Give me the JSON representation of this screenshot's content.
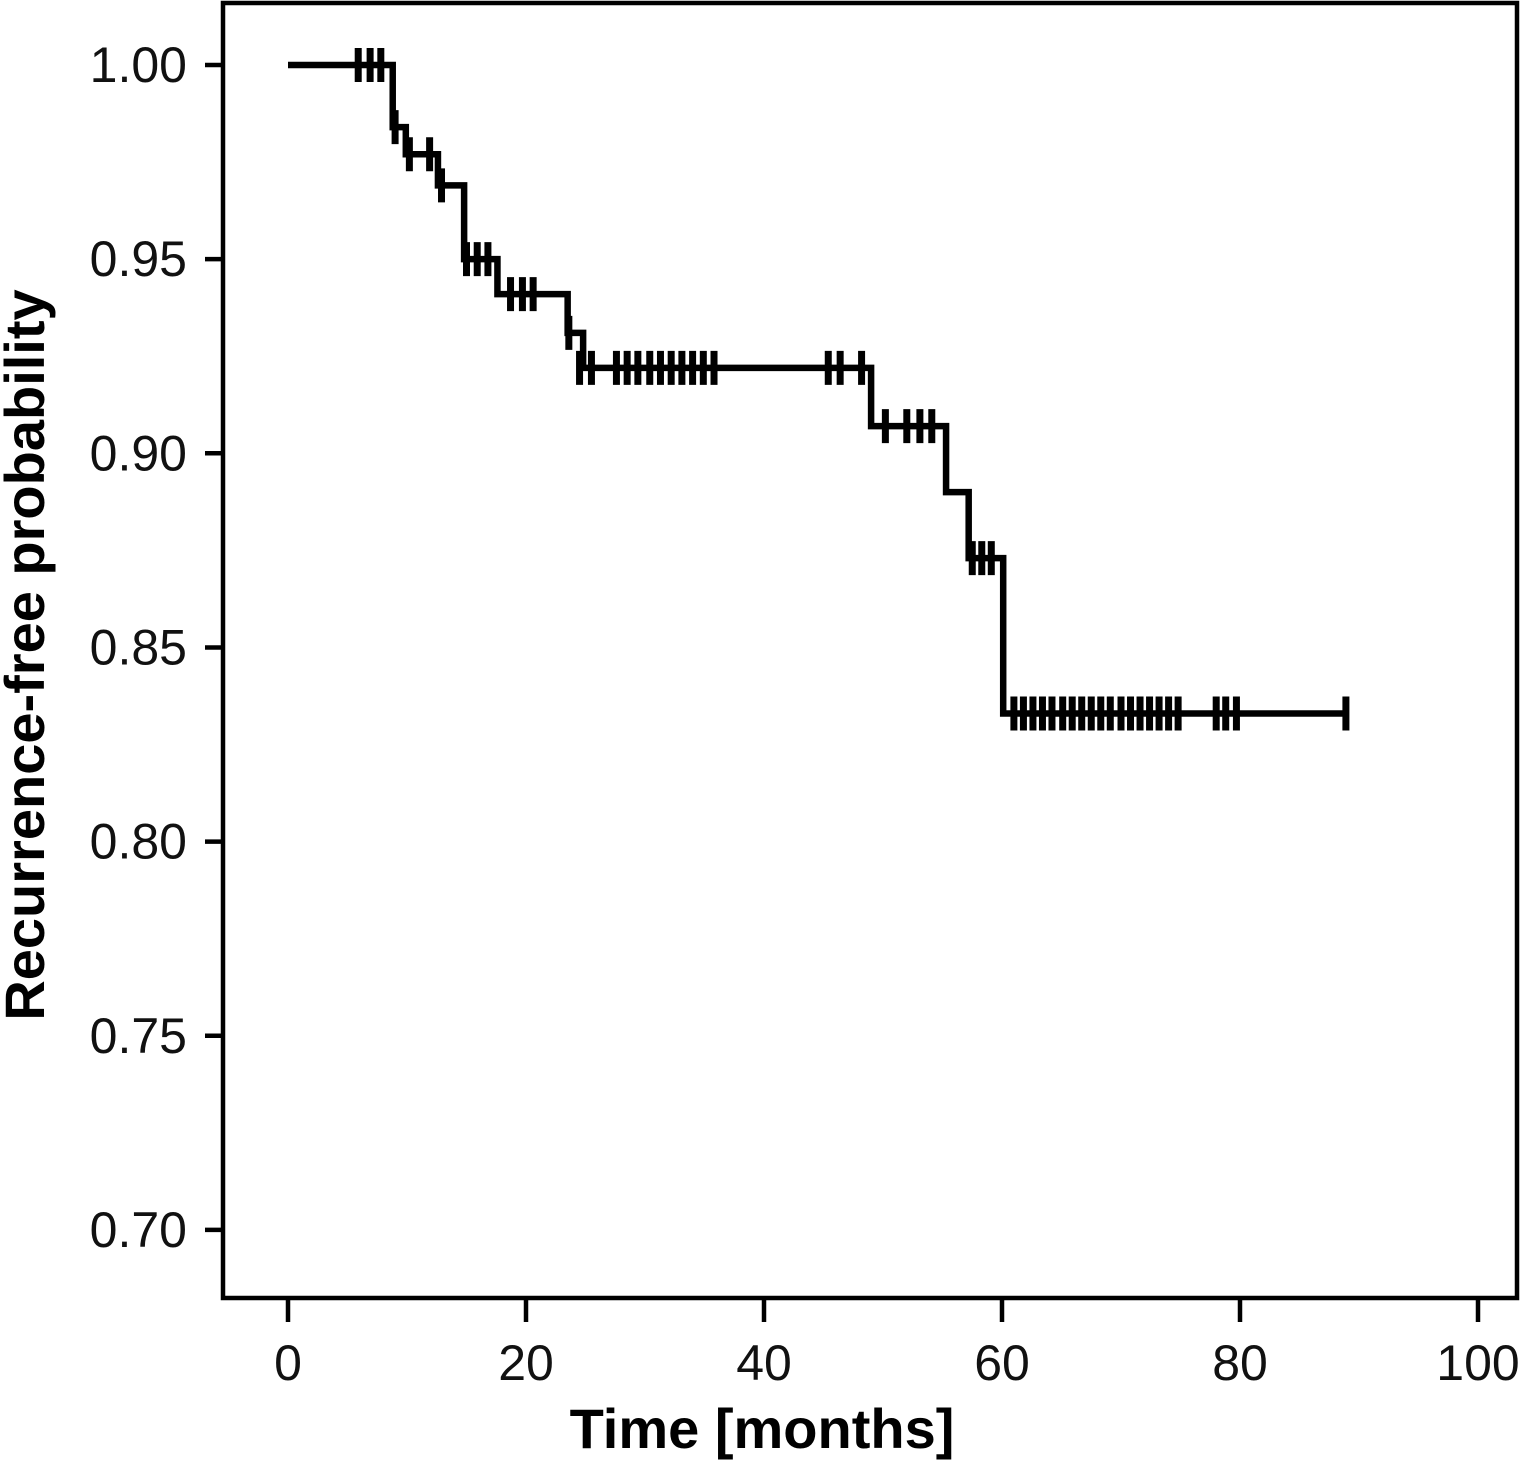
{
  "figure": {
    "background_color": "#ffffff",
    "curve_color": "#000000",
    "axis_color": "#000000",
    "tick_label_color": "#111111"
  },
  "chart_data": {
    "type": "line",
    "subtype": "kaplan-meier-step-curve",
    "title": "",
    "xlabel": "Time [months]",
    "ylabel": "Recurrence-free probability",
    "xlim": [
      0,
      100
    ],
    "ylim": [
      0.7,
      1.0
    ],
    "grid": false,
    "legend_position": "none",
    "x_ticks": [
      0,
      20,
      40,
      60,
      80,
      100
    ],
    "x_tick_labels": [
      "0",
      "20",
      "40",
      "60",
      "80",
      "100"
    ],
    "y_ticks": [
      1.0,
      0.95,
      0.9,
      0.85,
      0.8,
      0.75,
      0.7
    ],
    "y_tick_labels": [
      "1.00",
      "0.95",
      "0.90",
      "0.85",
      "0.80",
      "0.75",
      "0.70"
    ],
    "series": [
      {
        "name": "Recurrence-free probability",
        "start": {
          "t": 0,
          "S": 1.0
        },
        "steps": [
          {
            "t": 8.8,
            "S": 0.984
          },
          {
            "t": 9.9,
            "S": 0.977
          },
          {
            "t": 12.6,
            "S": 0.969
          },
          {
            "t": 14.8,
            "S": 0.95
          },
          {
            "t": 17.6,
            "S": 0.941
          },
          {
            "t": 23.5,
            "S": 0.931
          },
          {
            "t": 24.8,
            "S": 0.922
          },
          {
            "t": 49.0,
            "S": 0.907
          },
          {
            "t": 55.3,
            "S": 0.89
          },
          {
            "t": 57.2,
            "S": 0.873
          },
          {
            "t": 60.1,
            "S": 0.833
          }
        ],
        "end_t": 88.9,
        "censor_marks": [
          {
            "t": 5.9,
            "S": 1.0
          },
          {
            "t": 6.9,
            "S": 1.0
          },
          {
            "t": 7.8,
            "S": 1.0
          },
          {
            "t": 9.0,
            "S": 0.984
          },
          {
            "t": 10.2,
            "S": 0.977
          },
          {
            "t": 11.9,
            "S": 0.977
          },
          {
            "t": 12.9,
            "S": 0.969
          },
          {
            "t": 15.0,
            "S": 0.95
          },
          {
            "t": 15.9,
            "S": 0.95
          },
          {
            "t": 16.8,
            "S": 0.95
          },
          {
            "t": 18.7,
            "S": 0.941
          },
          {
            "t": 19.7,
            "S": 0.941
          },
          {
            "t": 20.6,
            "S": 0.941
          },
          {
            "t": 23.6,
            "S": 0.931
          },
          {
            "t": 24.5,
            "S": 0.922
          },
          {
            "t": 25.5,
            "S": 0.922
          },
          {
            "t": 27.6,
            "S": 0.922
          },
          {
            "t": 28.5,
            "S": 0.922
          },
          {
            "t": 29.4,
            "S": 0.922
          },
          {
            "t": 30.4,
            "S": 0.922
          },
          {
            "t": 31.3,
            "S": 0.922
          },
          {
            "t": 32.2,
            "S": 0.922
          },
          {
            "t": 33.1,
            "S": 0.922
          },
          {
            "t": 34.0,
            "S": 0.922
          },
          {
            "t": 34.9,
            "S": 0.922
          },
          {
            "t": 35.8,
            "S": 0.922
          },
          {
            "t": 45.4,
            "S": 0.922
          },
          {
            "t": 46.4,
            "S": 0.922
          },
          {
            "t": 48.2,
            "S": 0.922
          },
          {
            "t": 50.2,
            "S": 0.907
          },
          {
            "t": 52.0,
            "S": 0.907
          },
          {
            "t": 53.1,
            "S": 0.907
          },
          {
            "t": 54.1,
            "S": 0.907
          },
          {
            "t": 57.5,
            "S": 0.873
          },
          {
            "t": 58.3,
            "S": 0.873
          },
          {
            "t": 59.1,
            "S": 0.873
          },
          {
            "t": 61.0,
            "S": 0.833
          },
          {
            "t": 61.8,
            "S": 0.833
          },
          {
            "t": 62.6,
            "S": 0.833
          },
          {
            "t": 63.4,
            "S": 0.833
          },
          {
            "t": 64.2,
            "S": 0.833
          },
          {
            "t": 65.1,
            "S": 0.833
          },
          {
            "t": 65.9,
            "S": 0.833
          },
          {
            "t": 66.7,
            "S": 0.833
          },
          {
            "t": 67.5,
            "S": 0.833
          },
          {
            "t": 68.3,
            "S": 0.833
          },
          {
            "t": 69.1,
            "S": 0.833
          },
          {
            "t": 70.0,
            "S": 0.833
          },
          {
            "t": 70.8,
            "S": 0.833
          },
          {
            "t": 71.6,
            "S": 0.833
          },
          {
            "t": 72.4,
            "S": 0.833
          },
          {
            "t": 73.2,
            "S": 0.833
          },
          {
            "t": 74.0,
            "S": 0.833
          },
          {
            "t": 74.8,
            "S": 0.833
          },
          {
            "t": 78.0,
            "S": 0.833
          },
          {
            "t": 78.8,
            "S": 0.833
          },
          {
            "t": 79.7,
            "S": 0.833
          },
          {
            "t": 88.9,
            "S": 0.833
          }
        ]
      }
    ]
  }
}
